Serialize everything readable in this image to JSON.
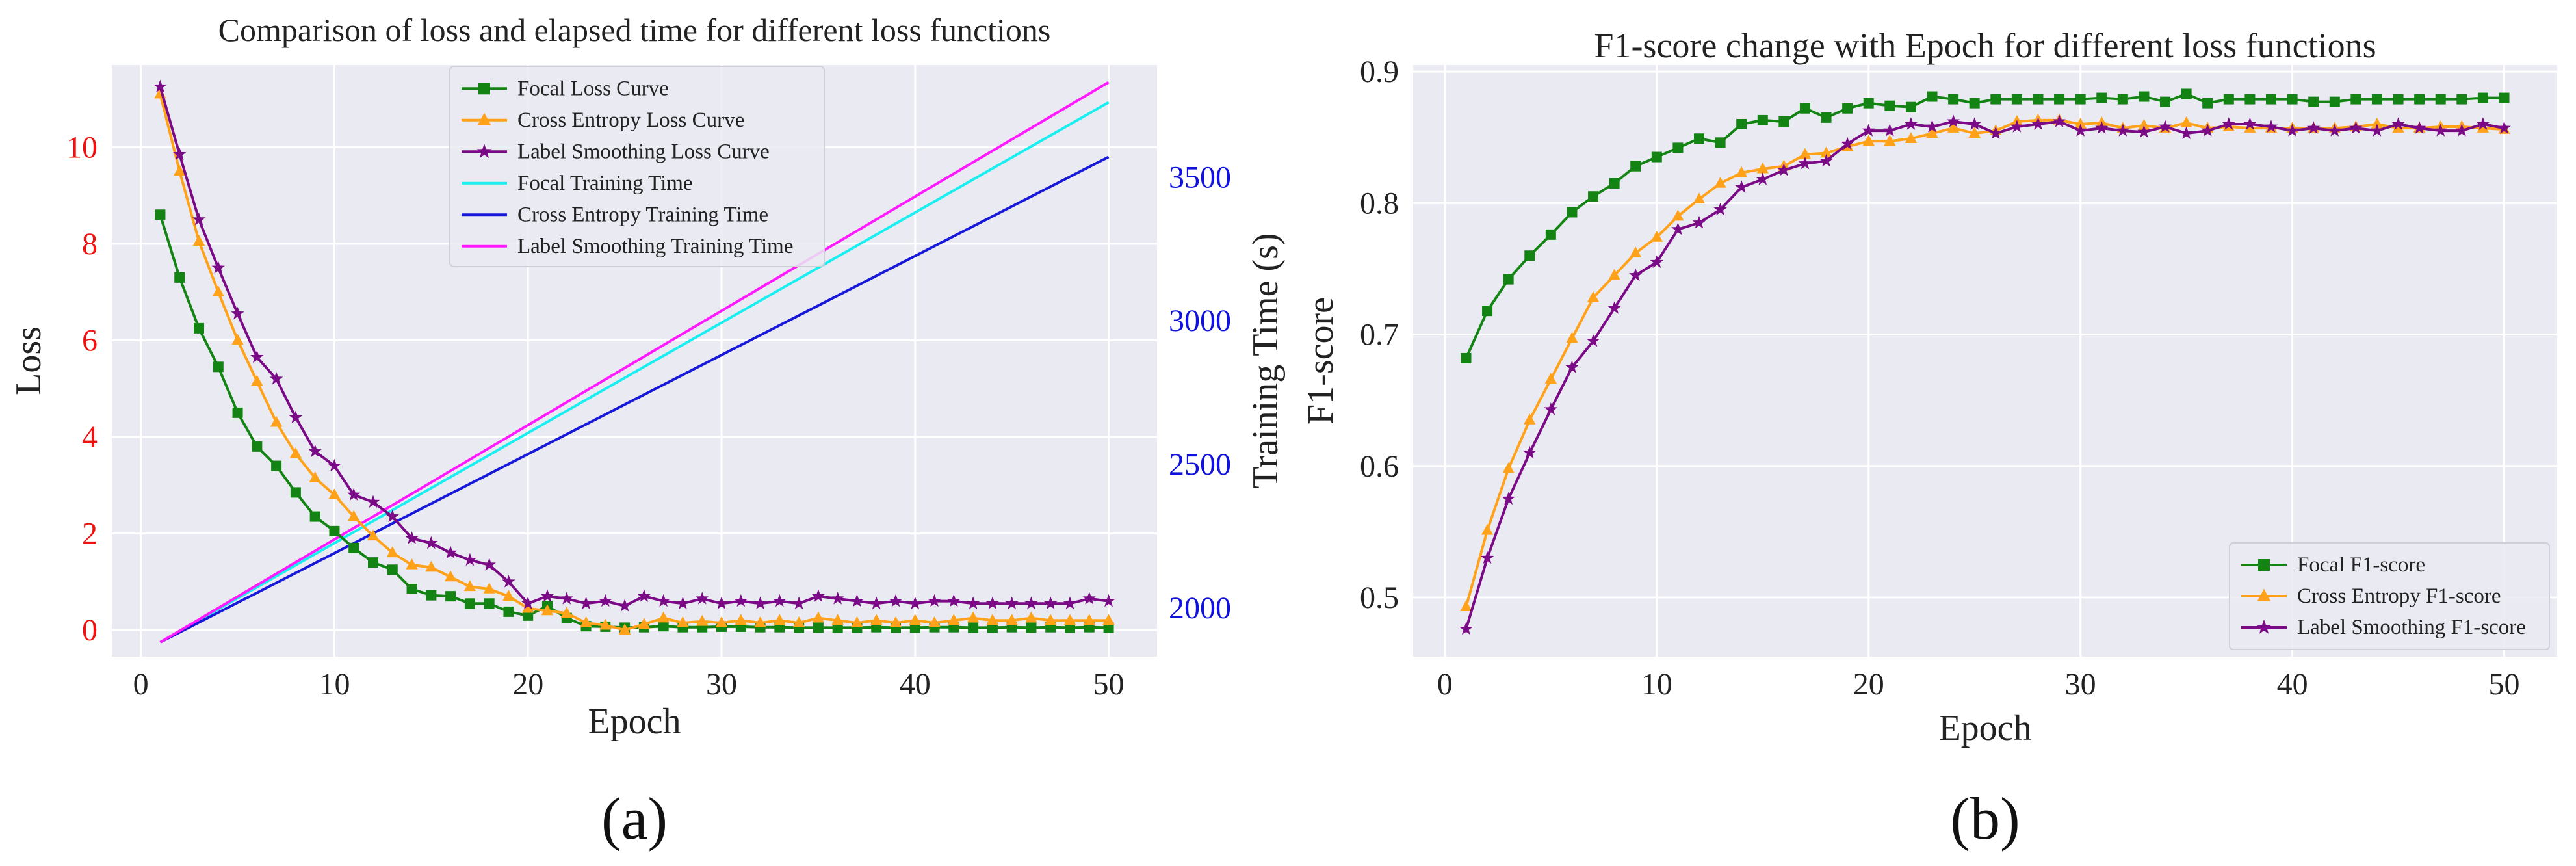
{
  "colors": {
    "plot_bg": "#eaeaf2",
    "grid": "#ffffff",
    "focal": "#138413",
    "ce": "#ffa21a",
    "ls": "#7b0a86",
    "focal_time": "#19eef0",
    "ce_time": "#1818d8",
    "ls_time": "#ff1aff",
    "loss_axis": "#ee1111",
    "time_axis": "#1111dd"
  },
  "chart_data": [
    {
      "type": "line",
      "panel_label": "(a)",
      "title": "Comparison of loss and elapsed time for different loss functions",
      "xlabel": "Epoch",
      "ylabel": "Loss",
      "y2label": "Training Time (s)",
      "xlim": [
        -1.5,
        52.5
      ],
      "ylim": [
        -0.55,
        11.7
      ],
      "y2lim": [
        1830,
        3890
      ],
      "xticks": [
        "0",
        "10",
        "20",
        "30",
        "40",
        "50"
      ],
      "yticks": [
        "0",
        "2",
        "4",
        "6",
        "8",
        "10"
      ],
      "y2ticks": [
        "2000",
        "2500",
        "3000",
        "3500"
      ],
      "grid": true,
      "legend_position": "upper center",
      "x": [
        1,
        2,
        3,
        4,
        5,
        6,
        7,
        8,
        9,
        10,
        11,
        12,
        13,
        14,
        15,
        16,
        17,
        18,
        19,
        20,
        21,
        22,
        23,
        24,
        25,
        26,
        27,
        28,
        29,
        30,
        31,
        32,
        33,
        34,
        35,
        36,
        37,
        38,
        39,
        40,
        41,
        42,
        43,
        44,
        45,
        46,
        47,
        48,
        49,
        50
      ],
      "series": [
        {
          "name": "Focal Loss Curve",
          "axis": "left",
          "marker": "square",
          "color_key": "focal",
          "values": [
            8.6,
            7.3,
            6.25,
            5.45,
            4.5,
            3.8,
            3.4,
            2.85,
            2.35,
            2.05,
            1.7,
            1.4,
            1.25,
            0.85,
            0.72,
            0.7,
            0.55,
            0.55,
            0.38,
            0.3,
            0.5,
            0.25,
            0.08,
            0.07,
            0.05,
            0.06,
            0.08,
            0.06,
            0.06,
            0.07,
            0.07,
            0.06,
            0.06,
            0.05,
            0.05,
            0.05,
            0.05,
            0.06,
            0.05,
            0.05,
            0.06,
            0.06,
            0.05,
            0.05,
            0.06,
            0.05,
            0.06,
            0.05,
            0.06,
            0.05
          ]
        },
        {
          "name": "Cross Entropy Loss Curve",
          "axis": "left",
          "marker": "triangle",
          "color_key": "ce",
          "values": [
            11.1,
            9.5,
            8.05,
            7.0,
            6.0,
            5.15,
            4.3,
            3.65,
            3.15,
            2.8,
            2.35,
            1.95,
            1.6,
            1.35,
            1.3,
            1.1,
            0.9,
            0.85,
            0.7,
            0.45,
            0.4,
            0.35,
            0.15,
            0.1,
            0.0,
            0.12,
            0.25,
            0.15,
            0.18,
            0.15,
            0.2,
            0.15,
            0.2,
            0.15,
            0.25,
            0.2,
            0.15,
            0.2,
            0.15,
            0.2,
            0.15,
            0.2,
            0.25,
            0.2,
            0.2,
            0.25,
            0.2,
            0.2,
            0.2,
            0.2
          ]
        },
        {
          "name": "Label Smoothing Loss Curve",
          "axis": "left",
          "marker": "star",
          "color_key": "ls",
          "values": [
            11.25,
            9.85,
            8.5,
            7.5,
            6.55,
            5.65,
            5.2,
            4.4,
            3.7,
            3.4,
            2.8,
            2.65,
            2.35,
            1.9,
            1.8,
            1.6,
            1.45,
            1.35,
            1.0,
            0.55,
            0.7,
            0.65,
            0.55,
            0.6,
            0.5,
            0.7,
            0.6,
            0.55,
            0.65,
            0.55,
            0.6,
            0.55,
            0.6,
            0.55,
            0.7,
            0.65,
            0.6,
            0.55,
            0.6,
            0.55,
            0.6,
            0.6,
            0.55,
            0.55,
            0.55,
            0.55,
            0.55,
            0.55,
            0.65,
            0.6
          ]
        },
        {
          "name": "Focal Training Time",
          "axis": "right",
          "marker": "none",
          "color_key": "focal_time",
          "endpoints": [
            [
              1,
              1880
            ],
            [
              50,
              3760
            ]
          ]
        },
        {
          "name": "Cross Entropy Training Time",
          "axis": "right",
          "marker": "none",
          "color_key": "ce_time",
          "endpoints": [
            [
              1,
              1880
            ],
            [
              50,
              3570
            ]
          ]
        },
        {
          "name": "Label Smoothing Training Time",
          "axis": "right",
          "marker": "none",
          "color_key": "ls_time",
          "endpoints": [
            [
              1,
              1880
            ],
            [
              50,
              3830
            ]
          ]
        }
      ]
    },
    {
      "type": "line",
      "panel_label": "(b)",
      "title": "F1-score change with Epoch for different loss functions",
      "xlabel": "Epoch",
      "ylabel": "F1-score",
      "xlim": [
        -1.5,
        52.5
      ],
      "ylim": [
        0.455,
        0.905
      ],
      "xticks": [
        "0",
        "10",
        "20",
        "30",
        "40",
        "50"
      ],
      "yticks": [
        "0.5",
        "0.6",
        "0.7",
        "0.8",
        "0.9"
      ],
      "grid": true,
      "legend_position": "lower right",
      "x": [
        1,
        2,
        3,
        4,
        5,
        6,
        7,
        8,
        9,
        10,
        11,
        12,
        13,
        14,
        15,
        16,
        17,
        18,
        19,
        20,
        21,
        22,
        23,
        24,
        25,
        26,
        27,
        28,
        29,
        30,
        31,
        32,
        33,
        34,
        35,
        36,
        37,
        38,
        39,
        40,
        41,
        42,
        43,
        44,
        45,
        46,
        47,
        48,
        49,
        50
      ],
      "series": [
        {
          "name": "Focal F1-score",
          "marker": "square",
          "color_key": "focal",
          "values": [
            0.682,
            0.718,
            0.742,
            0.76,
            0.776,
            0.793,
            0.805,
            0.815,
            0.828,
            0.835,
            0.842,
            0.849,
            0.846,
            0.86,
            0.863,
            0.862,
            0.872,
            0.865,
            0.872,
            0.876,
            0.874,
            0.873,
            0.881,
            0.879,
            0.876,
            0.879,
            0.879,
            0.879,
            0.879,
            0.879,
            0.88,
            0.879,
            0.881,
            0.877,
            0.883,
            0.876,
            0.879,
            0.879,
            0.879,
            0.879,
            0.877,
            0.877,
            0.879,
            0.879,
            0.879,
            0.879,
            0.879,
            0.879,
            0.88,
            0.88
          ]
        },
        {
          "name": "Cross Entropy F1-score",
          "marker": "triangle",
          "color_key": "ce",
          "values": [
            0.493,
            0.551,
            0.598,
            0.635,
            0.666,
            0.697,
            0.728,
            0.745,
            0.762,
            0.774,
            0.79,
            0.803,
            0.815,
            0.823,
            0.826,
            0.828,
            0.837,
            0.838,
            0.843,
            0.847,
            0.847,
            0.849,
            0.853,
            0.857,
            0.853,
            0.855,
            0.862,
            0.863,
            0.863,
            0.86,
            0.861,
            0.857,
            0.859,
            0.857,
            0.861,
            0.857,
            0.858,
            0.857,
            0.857,
            0.857,
            0.857,
            0.857,
            0.858,
            0.86,
            0.857,
            0.857,
            0.858,
            0.858,
            0.857,
            0.856
          ]
        },
        {
          "name": "Label Smoothing F1-score",
          "marker": "star",
          "color_key": "ls",
          "values": [
            0.476,
            0.53,
            0.575,
            0.61,
            0.643,
            0.675,
            0.695,
            0.72,
            0.745,
            0.755,
            0.78,
            0.785,
            0.795,
            0.812,
            0.818,
            0.825,
            0.83,
            0.832,
            0.845,
            0.855,
            0.855,
            0.86,
            0.858,
            0.862,
            0.86,
            0.853,
            0.858,
            0.86,
            0.862,
            0.855,
            0.857,
            0.855,
            0.854,
            0.858,
            0.853,
            0.855,
            0.86,
            0.86,
            0.858,
            0.855,
            0.857,
            0.855,
            0.857,
            0.855,
            0.86,
            0.857,
            0.855,
            0.855,
            0.86,
            0.857
          ]
        }
      ]
    }
  ]
}
